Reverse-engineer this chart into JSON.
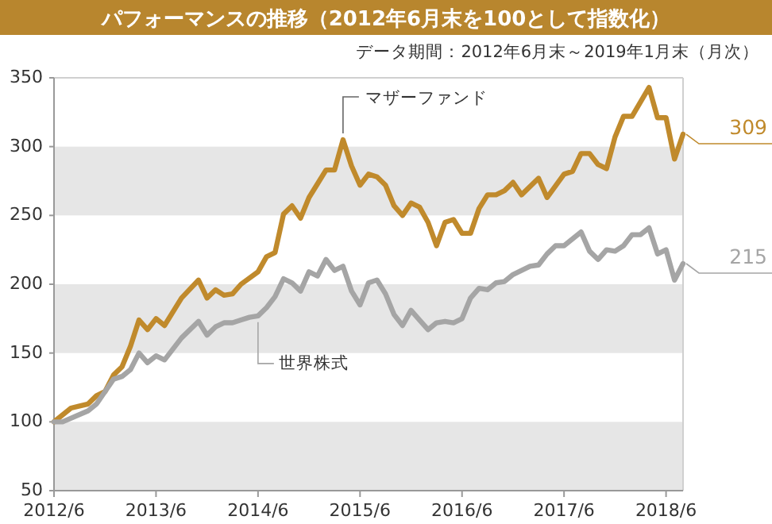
{
  "chart_data": {
    "type": "line",
    "title": "パフォーマンスの推移（2012年6月末を100として指数化）",
    "subtitle": "データ期間：2012年6月末～2019年1月末（月次）",
    "xlim": [
      "2012-06",
      "2018-08"
    ],
    "xticks": [
      {
        "value": "2012-06",
        "label": "2012/6"
      },
      {
        "value": "2013-06",
        "label": "2013/6"
      },
      {
        "value": "2014-06",
        "label": "2014/6"
      },
      {
        "value": "2015-06",
        "label": "2015/6"
      },
      {
        "value": "2016-06",
        "label": "2016/6"
      },
      {
        "value": "2017-06",
        "label": "2017/6"
      },
      {
        "value": "2018-06",
        "label": "2018/6"
      }
    ],
    "ylim": [
      50,
      350
    ],
    "yticks": [
      50,
      100,
      150,
      200,
      250,
      300,
      350
    ],
    "bands": [
      {
        "axis": "y",
        "from": 50,
        "to": 100,
        "color": "#e6e6e6"
      },
      {
        "axis": "y",
        "from": 150,
        "to": 200,
        "color": "#e6e6e6"
      },
      {
        "axis": "y",
        "from": 250,
        "to": 300,
        "color": "#e6e6e6"
      }
    ],
    "series": [
      {
        "name": "マザーファンド",
        "color": "#c08a2c",
        "x": [
          "2012-06",
          "2012-08",
          "2012-10",
          "2012-11",
          "2012-12",
          "2013-01",
          "2013-02",
          "2013-03",
          "2013-04",
          "2013-05",
          "2013-06",
          "2013-07",
          "2013-09",
          "2013-11",
          "2013-12",
          "2014-01",
          "2014-02",
          "2014-03",
          "2014-04",
          "2014-06",
          "2014-07",
          "2014-08",
          "2014-09",
          "2014-10",
          "2014-11",
          "2014-12",
          "2015-01",
          "2015-02",
          "2015-03",
          "2015-04",
          "2015-05",
          "2015-06",
          "2015-07",
          "2015-08",
          "2015-09",
          "2015-10",
          "2015-11",
          "2015-12",
          "2016-01",
          "2016-02",
          "2016-03",
          "2016-04",
          "2016-05",
          "2016-06",
          "2016-07",
          "2016-08",
          "2016-09",
          "2016-10",
          "2016-11",
          "2016-12",
          "2017-01",
          "2017-03",
          "2017-04",
          "2017-06",
          "2017-07",
          "2017-08",
          "2017-09",
          "2017-10",
          "2017-11",
          "2017-12",
          "2018-01",
          "2018-02",
          "2018-04",
          "2018-05",
          "2018-06",
          "2018-07",
          "2018-08"
        ],
        "values": [
          100,
          110,
          113,
          119,
          122,
          134,
          140,
          155,
          174,
          167,
          175,
          170,
          190,
          203,
          190,
          196,
          192,
          193,
          200,
          209,
          220,
          223,
          251,
          257,
          248,
          263,
          273,
          283,
          283,
          305,
          286,
          272,
          280,
          278,
          272,
          257,
          250,
          259,
          256,
          245,
          228,
          245,
          247,
          237,
          237,
          255,
          265,
          265,
          268,
          274,
          265,
          277,
          263,
          280,
          282,
          295,
          295,
          287,
          284,
          307,
          322,
          322,
          343,
          321,
          321,
          291,
          309
        ]
      },
      {
        "name": "世界株式",
        "color": "#a5a5a5",
        "x": [
          "2012-06",
          "2012-07",
          "2012-10",
          "2012-11",
          "2012-12",
          "2013-01",
          "2013-02",
          "2013-03",
          "2013-04",
          "2013-05",
          "2013-06",
          "2013-07",
          "2013-09",
          "2013-11",
          "2013-12",
          "2014-01",
          "2014-02",
          "2014-03",
          "2014-04",
          "2014-05",
          "2014-06",
          "2014-07",
          "2014-08",
          "2014-09",
          "2014-10",
          "2014-11",
          "2014-12",
          "2015-01",
          "2015-02",
          "2015-03",
          "2015-04",
          "2015-05",
          "2015-06",
          "2015-07",
          "2015-08",
          "2015-09",
          "2015-10",
          "2015-11",
          "2015-12",
          "2016-01",
          "2016-02",
          "2016-03",
          "2016-04",
          "2016-05",
          "2016-06",
          "2016-07",
          "2016-08",
          "2016-09",
          "2016-10",
          "2016-11",
          "2016-12",
          "2017-01",
          "2017-02",
          "2017-03",
          "2017-04",
          "2017-05",
          "2017-06",
          "2017-08",
          "2017-09",
          "2017-10",
          "2017-11",
          "2017-12",
          "2018-01",
          "2018-02",
          "2018-03",
          "2018-04",
          "2018-05",
          "2018-06",
          "2018-07",
          "2018-08"
        ],
        "values": [
          100,
          100,
          108,
          113,
          122,
          131,
          133,
          138,
          150,
          143,
          148,
          145,
          161,
          173,
          163,
          169,
          172,
          172,
          174,
          176,
          177,
          183,
          191,
          204,
          201,
          195,
          209,
          206,
          218,
          210,
          213,
          195,
          185,
          201,
          203,
          193,
          178,
          170,
          181,
          174,
          167,
          172,
          173,
          172,
          175,
          190,
          197,
          196,
          201,
          202,
          207,
          210,
          213,
          214,
          222,
          228,
          228,
          238,
          224,
          218,
          225,
          224,
          228,
          236,
          236,
          241,
          222,
          225,
          203,
          215
        ]
      }
    ],
    "annotations": [
      {
        "text": "309",
        "x": "2018-08",
        "y": 309
      },
      {
        "text": "215",
        "x": "2018-08",
        "y": 215
      }
    ]
  }
}
